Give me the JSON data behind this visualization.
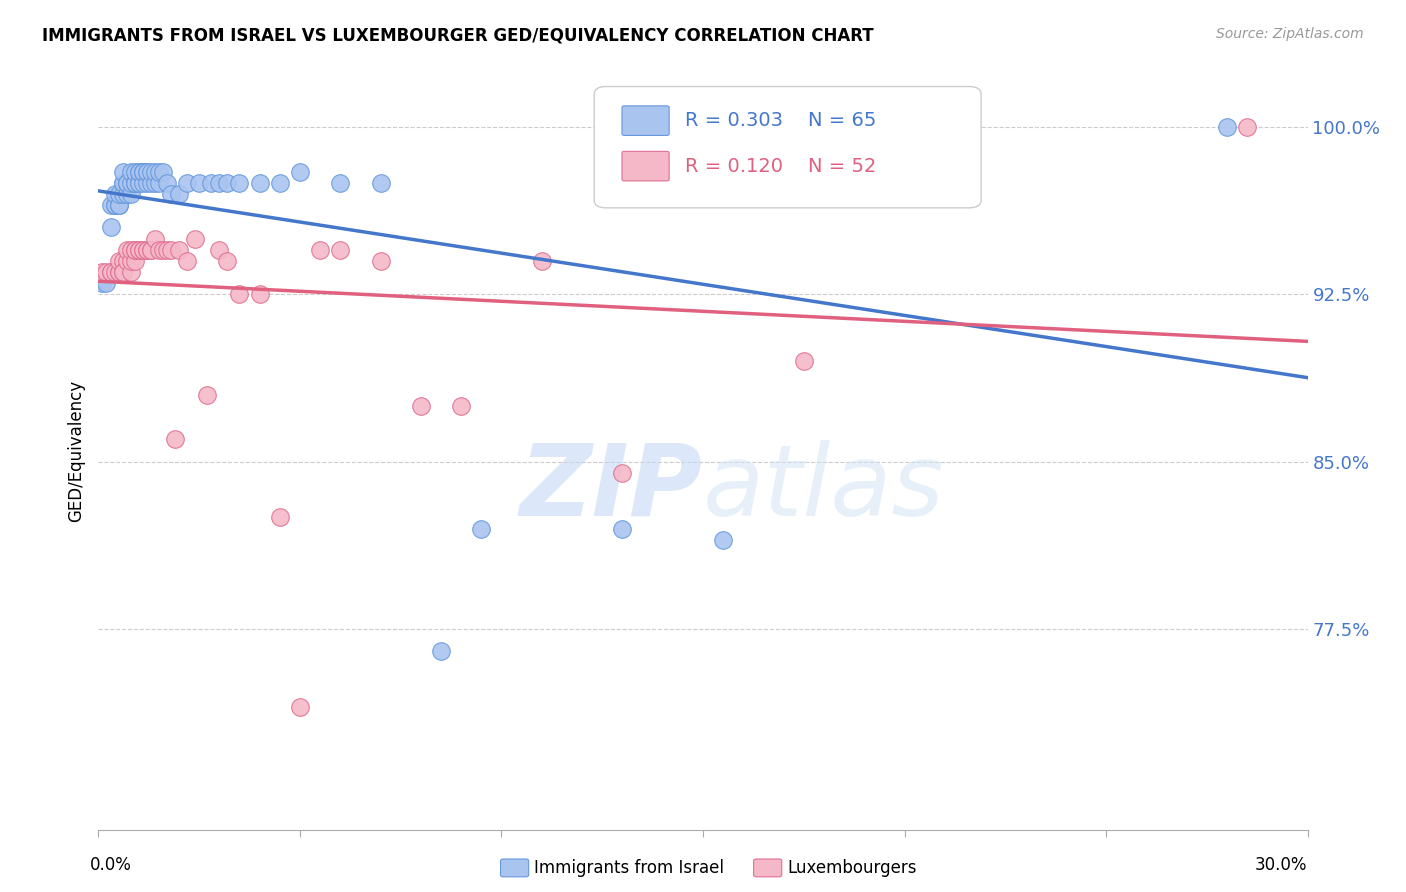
{
  "title": "IMMIGRANTS FROM ISRAEL VS LUXEMBOURGER GED/EQUIVALENCY CORRELATION CHART",
  "source": "Source: ZipAtlas.com",
  "ylabel": "GED/Equivalency",
  "ytick_labels": [
    "77.5%",
    "85.0%",
    "92.5%",
    "100.0%"
  ],
  "ytick_values": [
    0.775,
    0.85,
    0.925,
    1.0
  ],
  "xlim": [
    0.0,
    0.3
  ],
  "ylim": [
    0.685,
    1.025
  ],
  "legend_r1": "R = 0.303",
  "legend_n1": "N = 65",
  "legend_r2": "R = 0.120",
  "legend_n2": "N = 52",
  "legend_label1": "Immigrants from Israel",
  "legend_label2": "Luxembourgers",
  "blue_color": "#aac4f0",
  "pink_color": "#f5b8c8",
  "blue_edge_color": "#6699dd",
  "pink_edge_color": "#e07090",
  "blue_line_color": "#4477cc",
  "pink_line_color": "#e06080",
  "watermark_color": "#ddeeff",
  "blue_scatter_x": [
    0.001,
    0.002,
    0.003,
    0.003,
    0.004,
    0.004,
    0.004,
    0.005,
    0.005,
    0.005,
    0.005,
    0.006,
    0.006,
    0.006,
    0.006,
    0.007,
    0.007,
    0.007,
    0.007,
    0.008,
    0.008,
    0.008,
    0.009,
    0.009,
    0.009,
    0.009,
    0.01,
    0.01,
    0.01,
    0.01,
    0.011,
    0.011,
    0.011,
    0.011,
    0.012,
    0.012,
    0.012,
    0.013,
    0.013,
    0.014,
    0.014,
    0.015,
    0.015,
    0.016,
    0.017,
    0.018,
    0.02,
    0.022,
    0.025,
    0.028,
    0.03,
    0.032,
    0.035,
    0.04,
    0.045,
    0.05,
    0.06,
    0.07,
    0.085,
    0.095,
    0.13,
    0.155,
    0.168,
    0.195,
    0.28
  ],
  "blue_scatter_y": [
    0.93,
    0.93,
    0.955,
    0.965,
    0.965,
    0.965,
    0.97,
    0.965,
    0.965,
    0.965,
    0.97,
    0.97,
    0.975,
    0.975,
    0.98,
    0.97,
    0.975,
    0.975,
    0.975,
    0.97,
    0.975,
    0.98,
    0.975,
    0.975,
    0.975,
    0.98,
    0.975,
    0.975,
    0.98,
    0.98,
    0.975,
    0.98,
    0.98,
    0.98,
    0.975,
    0.98,
    0.98,
    0.975,
    0.98,
    0.975,
    0.98,
    0.975,
    0.98,
    0.98,
    0.975,
    0.97,
    0.97,
    0.975,
    0.975,
    0.975,
    0.975,
    0.975,
    0.975,
    0.975,
    0.975,
    0.98,
    0.975,
    0.975,
    0.765,
    0.82,
    0.82,
    0.815,
    0.975,
    0.975,
    1.0
  ],
  "pink_scatter_x": [
    0.001,
    0.002,
    0.003,
    0.003,
    0.004,
    0.005,
    0.005,
    0.005,
    0.006,
    0.006,
    0.006,
    0.007,
    0.007,
    0.008,
    0.008,
    0.008,
    0.009,
    0.009,
    0.009,
    0.01,
    0.01,
    0.011,
    0.011,
    0.012,
    0.012,
    0.013,
    0.013,
    0.014,
    0.015,
    0.016,
    0.017,
    0.018,
    0.019,
    0.02,
    0.022,
    0.024,
    0.027,
    0.03,
    0.032,
    0.035,
    0.04,
    0.045,
    0.05,
    0.055,
    0.06,
    0.07,
    0.08,
    0.09,
    0.11,
    0.13,
    0.175,
    0.285
  ],
  "pink_scatter_y": [
    0.935,
    0.935,
    0.935,
    0.935,
    0.935,
    0.935,
    0.935,
    0.94,
    0.94,
    0.935,
    0.935,
    0.94,
    0.945,
    0.935,
    0.94,
    0.945,
    0.94,
    0.945,
    0.945,
    0.945,
    0.945,
    0.945,
    0.945,
    0.945,
    0.945,
    0.945,
    0.945,
    0.95,
    0.945,
    0.945,
    0.945,
    0.945,
    0.86,
    0.945,
    0.94,
    0.95,
    0.88,
    0.945,
    0.94,
    0.925,
    0.925,
    0.825,
    0.74,
    0.945,
    0.945,
    0.94,
    0.875,
    0.875,
    0.94,
    0.845,
    0.895,
    1.0
  ]
}
